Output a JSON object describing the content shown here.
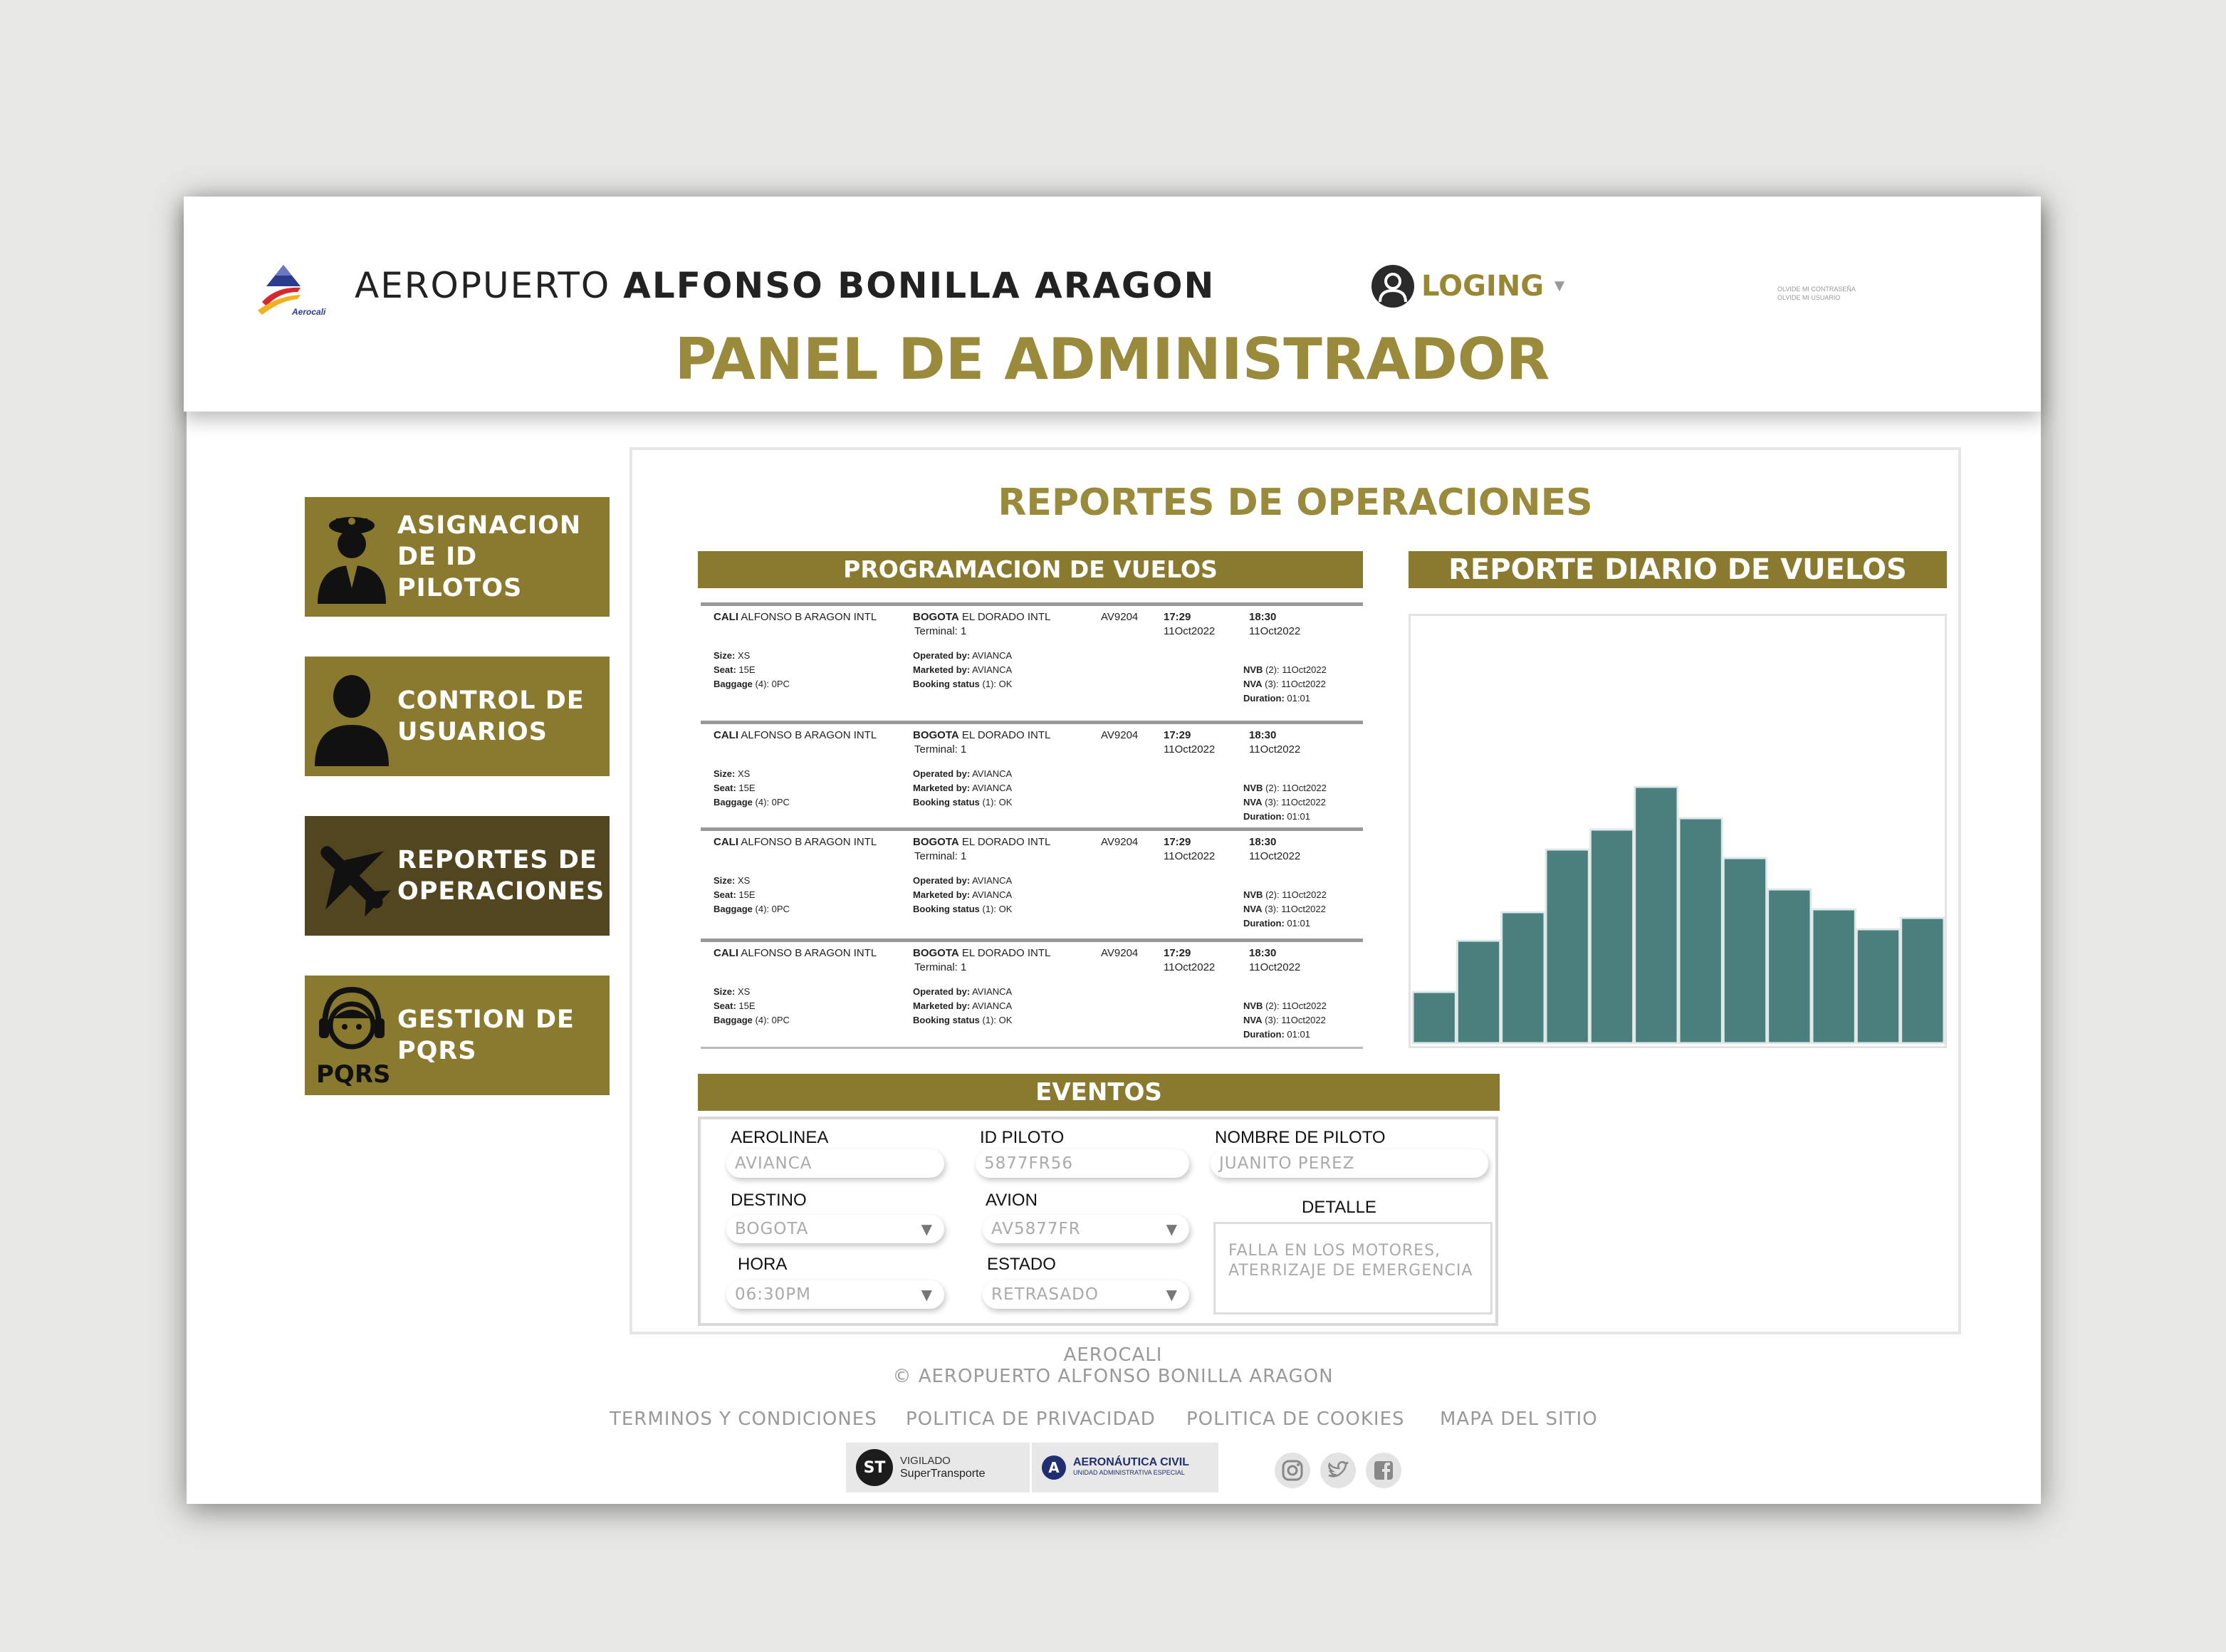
{
  "header": {
    "brand_light": "AEROPUERTO",
    "brand_bold": "ALFONSO BONILLA ARAGON",
    "logo_text": "Aerocali",
    "login_label": "LOGING",
    "forgot_password": "OLVIDE MI CONTRASEÑA",
    "forgot_user": "OLVIDE MI USUARIO",
    "panel_title": "PANEL DE ADMINISTRADOR"
  },
  "sidebar": {
    "items": [
      {
        "line1": "ASIGNACION",
        "line2": "DE ID PILOTOS",
        "icon": "pilot-icon"
      },
      {
        "line1": "CONTROL DE",
        "line2": "USUARIOS",
        "icon": "user-icon"
      },
      {
        "line1": "REPORTES DE",
        "line2": "OPERACIONES",
        "icon": "airplane-icon",
        "active": true
      },
      {
        "line1": "GESTION DE",
        "line2": "PQRS",
        "icon": "support-agent-icon",
        "icon_text": "PQRS"
      }
    ]
  },
  "main": {
    "title": "REPORTES DE OPERACIONES",
    "schedule_title": "PROGRAMACION DE VUELOS",
    "chart_title": "REPORTE DIARIO DE VUELOS",
    "events_title": "EVENTOS"
  },
  "flights": [
    {
      "origin_code": "CALI",
      "origin_name": "ALFONSO B ARAGON INTL",
      "dest_code": "BOGOTA",
      "dest_name": "EL DORADO INTL",
      "terminal": "Terminal: 1",
      "flight_no": "AV9204",
      "dep_time": "17:29",
      "dep_date": "11Oct2022",
      "arr_time": "18:30",
      "arr_date": "11Oct2022",
      "size_label": "Size:",
      "size": "XS",
      "seat_label": "Seat:",
      "seat": "15E",
      "baggage_label": "Baggage",
      "baggage": "(4): 0PC",
      "operated_label": "Operated by:",
      "operated": "AVIANCA",
      "marketed_label": "Marketed by:",
      "marketed": "AVIANCA",
      "booking_label": "Booking status",
      "booking": "(1): OK",
      "nvb_label": "NVB",
      "nvb": "(2): 11Oct2022",
      "nva_label": "NVA",
      "nva": "(3): 11Oct2022",
      "duration_label": "Duration:",
      "duration": "01:01"
    },
    {
      "origin_code": "CALI",
      "origin_name": "ALFONSO B ARAGON INTL",
      "dest_code": "BOGOTA",
      "dest_name": "EL DORADO INTL",
      "terminal": "Terminal: 1",
      "flight_no": "AV9204",
      "dep_time": "17:29",
      "dep_date": "11Oct2022",
      "arr_time": "18:30",
      "arr_date": "11Oct2022",
      "size_label": "Size:",
      "size": "XS",
      "seat_label": "Seat:",
      "seat": "15E",
      "baggage_label": "Baggage",
      "baggage": "(4): 0PC",
      "operated_label": "Operated by:",
      "operated": "AVIANCA",
      "marketed_label": "Marketed by:",
      "marketed": "AVIANCA",
      "booking_label": "Booking status",
      "booking": "(1): OK",
      "nvb_label": "NVB",
      "nvb": "(2): 11Oct2022",
      "nva_label": "NVA",
      "nva": "(3): 11Oct2022",
      "duration_label": "Duration:",
      "duration": "01:01"
    },
    {
      "origin_code": "CALI",
      "origin_name": "ALFONSO B ARAGON INTL",
      "dest_code": "BOGOTA",
      "dest_name": "EL DORADO INTL",
      "terminal": "Terminal: 1",
      "flight_no": "AV9204",
      "dep_time": "17:29",
      "dep_date": "11Oct2022",
      "arr_time": "18:30",
      "arr_date": "11Oct2022",
      "size_label": "Size:",
      "size": "XS",
      "seat_label": "Seat:",
      "seat": "15E",
      "baggage_label": "Baggage",
      "baggage": "(4): 0PC",
      "operated_label": "Operated by:",
      "operated": "AVIANCA",
      "marketed_label": "Marketed by:",
      "marketed": "AVIANCA",
      "booking_label": "Booking status",
      "booking": "(1): OK",
      "nvb_label": "NVB",
      "nvb": "(2): 11Oct2022",
      "nva_label": "NVA",
      "nva": "(3): 11Oct2022",
      "duration_label": "Duration:",
      "duration": "01:01"
    },
    {
      "origin_code": "CALI",
      "origin_name": "ALFONSO B ARAGON INTL",
      "dest_code": "BOGOTA",
      "dest_name": "EL DORADO INTL",
      "terminal": "Terminal: 1",
      "flight_no": "AV9204",
      "dep_time": "17:29",
      "dep_date": "11Oct2022",
      "arr_time": "18:30",
      "arr_date": "11Oct2022",
      "size_label": "Size:",
      "size": "XS",
      "seat_label": "Seat:",
      "seat": "15E",
      "baggage_label": "Baggage",
      "baggage": "(4): 0PC",
      "operated_label": "Operated by:",
      "operated": "AVIANCA",
      "marketed_label": "Marketed by:",
      "marketed": "AVIANCA",
      "booking_label": "Booking status",
      "booking": "(1): OK",
      "nvb_label": "NVB",
      "nvb": "(2): 11Oct2022",
      "nva_label": "NVA",
      "nva": "(3): 11Oct2022",
      "duration_label": "Duration:",
      "duration": "01:01"
    }
  ],
  "chart_data": {
    "type": "bar",
    "title": "REPORTE DIARIO DE VUELOS",
    "values": [
      18,
      36,
      46,
      68,
      75,
      90,
      79,
      65,
      54,
      47,
      40,
      44
    ],
    "ylim": [
      0,
      100
    ],
    "grid": false,
    "color": "#4b7f7d"
  },
  "events": {
    "aerolinea_label": "AEROLINEA",
    "aerolinea_value": "AVIANCA",
    "id_piloto_label": "ID PILOTO",
    "id_piloto_value": "5877FR56",
    "nombre_label": "NOMBRE DE PILOTO",
    "nombre_value": "JUANITO PEREZ",
    "destino_label": "DESTINO",
    "destino_value": "BOGOTA",
    "avion_label": "AVION",
    "avion_value": "AV5877FR",
    "hora_label": "HORA",
    "hora_value": "06:30PM",
    "estado_label": "ESTADO",
    "estado_value": "RETRASADO",
    "detalle_label": "DETALLE",
    "detalle_value_line1": "FALLA EN LOS MOTORES,",
    "detalle_value_line2": "ATERRIZAJE DE EMERGENCIA"
  },
  "footer": {
    "brand": "AEROCALI",
    "copyright": "© AEROPUERTO ALFONSO BONILLA ARAGON",
    "links": [
      "TERMINOS Y CONDICIONES",
      "POLITICA DE PRIVACIDAD",
      "POLITICA DE COOKIES",
      "MAPA DEL SITIO"
    ],
    "vigilado_label": "VIGILADO",
    "vigilado_entity": "SuperTransporte",
    "aero_civil": "AERONÁUTICA CIVIL",
    "aero_civil_sub": "UNIDAD ADMINISTRATIVA ESPECIAL"
  },
  "colors": {
    "gold": "#8a7a30",
    "gold_dark": "#524621",
    "title_gold": "#9a8a3c",
    "teal": "#4b7f7d"
  }
}
